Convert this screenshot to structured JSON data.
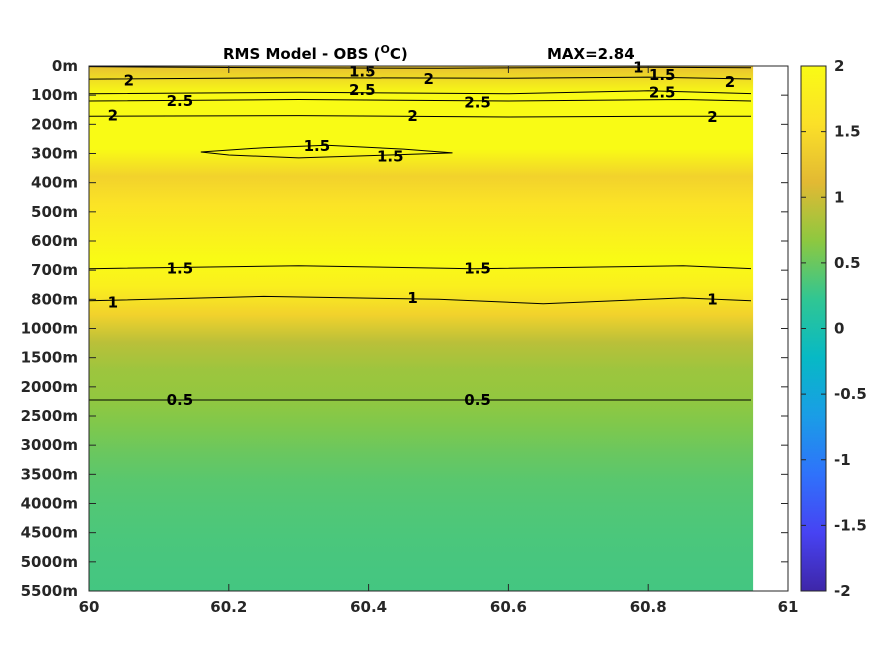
{
  "chart_data": {
    "type": "heatmap",
    "title": "RMS Model - OBS (°C)",
    "max_label": "MAX=2.84",
    "x": [
      60,
      60.95
    ],
    "xlim": [
      60,
      61
    ],
    "xticks": [
      "60",
      "60.2",
      "60.4",
      "60.6",
      "60.8",
      "61"
    ],
    "y_levels": [
      "0m",
      "100m",
      "200m",
      "300m",
      "400m",
      "500m",
      "600m",
      "700m",
      "800m",
      "1000m",
      "1500m",
      "2000m",
      "2500m",
      "3000m",
      "3500m",
      "4000m",
      "4500m",
      "5000m",
      "5500m"
    ],
    "row_values": [
      1.2,
      2.2,
      2.6,
      2.2,
      1.4,
      1.6,
      1.8,
      2.0,
      1.8,
      1.4,
      0.9,
      0.75,
      0.7,
      0.6,
      0.5,
      0.42,
      0.38,
      0.35,
      0.33,
      0.32
    ],
    "clim": [
      -2,
      2
    ],
    "colorbar_ticks": [
      "2",
      "1.5",
      "1",
      "0.5",
      "0",
      "-0.5",
      "-1",
      "-1.5",
      "-2"
    ],
    "colormap": [
      "#3e26a8",
      "#4743f3",
      "#2f72fb",
      "#1a9de6",
      "#07b9c5",
      "#30c693",
      "#8dc840",
      "#e2b933",
      "#fbe028",
      "#f9fb15"
    ],
    "contour_labels": [
      {
        "text": "1.5",
        "x": 60.391,
        "y": 0.18
      },
      {
        "text": "2",
        "x": 60.057,
        "y": 0.5
      },
      {
        "text": "2",
        "x": 60.486,
        "y": 0.45
      },
      {
        "text": "1",
        "x": 60.786,
        "y": 0.05
      },
      {
        "text": "1.5",
        "x": 60.82,
        "y": 0.3
      },
      {
        "text": "2",
        "x": 60.917,
        "y": 0.55
      },
      {
        "text": "2.5",
        "x": 60.391,
        "y": 0.82
      },
      {
        "text": "2.5",
        "x": 60.13,
        "y": 1.2
      },
      {
        "text": "2.5",
        "x": 60.556,
        "y": 1.25
      },
      {
        "text": "2.5",
        "x": 60.82,
        "y": 0.9
      },
      {
        "text": "2",
        "x": 60.034,
        "y": 1.7
      },
      {
        "text": "2",
        "x": 60.463,
        "y": 1.72
      },
      {
        "text": "2",
        "x": 60.892,
        "y": 1.75
      },
      {
        "text": "1.5",
        "x": 60.326,
        "y": 2.75
      },
      {
        "text": "1.5",
        "x": 60.431,
        "y": 3.1
      },
      {
        "text": "1.5",
        "x": 60.13,
        "y": 6.95
      },
      {
        "text": "1.5",
        "x": 60.556,
        "y": 6.95
      },
      {
        "text": "1",
        "x": 60.034,
        "y": 8.1
      },
      {
        "text": "1",
        "x": 60.463,
        "y": 7.95
      },
      {
        "text": "1",
        "x": 60.892,
        "y": 8.0
      },
      {
        "text": "0.5",
        "x": 60.13,
        "y": 11.45
      },
      {
        "text": "0.5",
        "x": 60.556,
        "y": 11.45
      }
    ]
  }
}
